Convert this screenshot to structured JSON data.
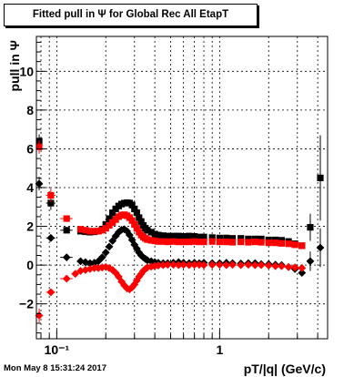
{
  "title": "Fitted pull in  Ψ  for Global Rec All EtapT",
  "footer_timestamp": "Mon May  8 15:31:24 2017",
  "chart_data": {
    "type": "scatter",
    "title": "Fitted pull in  Ψ  for Global Rec All EtapT",
    "xlabel": "pT/|q| (GeV/c)",
    "ylabel": "pull in  Ψ",
    "x_scale": "log",
    "xlim": [
      0.075,
      4.6
    ],
    "ylim": [
      -3.8,
      11.8
    ],
    "x_ticks": [
      {
        "value": 0.1,
        "label": "10⁻¹"
      },
      {
        "value": 1,
        "label": "1"
      }
    ],
    "y_ticks": [
      -2,
      0,
      2,
      4,
      6,
      8,
      10
    ],
    "grid": true,
    "colors": {
      "black_series": "#000000",
      "red_series": "#ff0000"
    },
    "series": [
      {
        "marker": "square",
        "color": "#000000",
        "points": [
          {
            "x": 0.078,
            "y": 6.4,
            "err": 0.35,
            "xerr": [
              0.0035,
              0.0035
            ]
          },
          {
            "x": 0.092,
            "y": 3.2,
            "err": 0.35,
            "xerr": [
              0.006,
              0.006
            ]
          },
          {
            "x": 0.115,
            "y": 1.8,
            "err": 0.15,
            "xerr": [
              0.01,
              0.01
            ]
          },
          {
            "x": 0.14,
            "y": 1.75
          },
          {
            "x": 0.15,
            "y": 1.72
          },
          {
            "x": 0.16,
            "y": 1.7
          },
          {
            "x": 0.17,
            "y": 1.72
          },
          {
            "x": 0.18,
            "y": 1.75
          },
          {
            "x": 0.19,
            "y": 1.85
          },
          {
            "x": 0.2,
            "y": 2.1
          },
          {
            "x": 0.21,
            "y": 2.4
          },
          {
            "x": 0.22,
            "y": 2.7
          },
          {
            "x": 0.23,
            "y": 2.9
          },
          {
            "x": 0.24,
            "y": 3.05
          },
          {
            "x": 0.25,
            "y": 3.15
          },
          {
            "x": 0.26,
            "y": 3.2
          },
          {
            "x": 0.27,
            "y": 3.22
          },
          {
            "x": 0.28,
            "y": 3.2
          },
          {
            "x": 0.29,
            "y": 3.1
          },
          {
            "x": 0.3,
            "y": 2.9
          },
          {
            "x": 0.31,
            "y": 2.7
          },
          {
            "x": 0.32,
            "y": 2.45
          },
          {
            "x": 0.33,
            "y": 2.25
          },
          {
            "x": 0.34,
            "y": 2.05
          },
          {
            "x": 0.35,
            "y": 1.9
          },
          {
            "x": 0.36,
            "y": 1.8
          },
          {
            "x": 0.38,
            "y": 1.7
          },
          {
            "x": 0.4,
            "y": 1.6
          },
          {
            "x": 0.42,
            "y": 1.55
          },
          {
            "x": 0.45,
            "y": 1.52
          },
          {
            "x": 0.48,
            "y": 1.5
          },
          {
            "x": 0.52,
            "y": 1.5
          },
          {
            "x": 0.56,
            "y": 1.5
          },
          {
            "x": 0.6,
            "y": 1.48
          },
          {
            "x": 0.65,
            "y": 1.5
          },
          {
            "x": 0.7,
            "y": 1.48
          },
          {
            "x": 0.75,
            "y": 1.45
          },
          {
            "x": 0.8,
            "y": 1.45
          },
          {
            "x": 0.9,
            "y": 1.42
          },
          {
            "x": 1.0,
            "y": 1.4
          },
          {
            "x": 1.1,
            "y": 1.4
          },
          {
            "x": 1.2,
            "y": 1.38
          },
          {
            "x": 1.35,
            "y": 1.38
          },
          {
            "x": 1.5,
            "y": 1.35
          },
          {
            "x": 1.65,
            "y": 1.35
          },
          {
            "x": 1.8,
            "y": 1.35
          },
          {
            "x": 2.0,
            "y": 1.3
          },
          {
            "x": 2.2,
            "y": 1.3
          },
          {
            "x": 2.4,
            "y": 1.28
          },
          {
            "x": 2.65,
            "y": 1.22
          },
          {
            "x": 2.9,
            "y": 1.1
          },
          {
            "x": 3.2,
            "y": 1.0
          },
          {
            "x": 3.6,
            "y": 1.95,
            "err": 0.7,
            "xerr": [
              0.15,
              0.15
            ]
          },
          {
            "x": 4.15,
            "y": 4.5,
            "err": 2.2,
            "xerr": [
              0.15,
              0.15
            ]
          }
        ]
      },
      {
        "marker": "square",
        "color": "#ff0000",
        "points": [
          {
            "x": 0.078,
            "y": 6.1,
            "err": 0.35,
            "xerr": [
              0.0035,
              0.0035
            ]
          },
          {
            "x": 0.092,
            "y": 3.6,
            "err": 0.35,
            "xerr": [
              0.006,
              0.006
            ]
          },
          {
            "x": 0.115,
            "y": 2.4,
            "err": 0.15,
            "xerr": [
              0.01,
              0.01
            ]
          },
          {
            "x": 0.14,
            "y": 1.85
          },
          {
            "x": 0.15,
            "y": 1.8
          },
          {
            "x": 0.16,
            "y": 1.75
          },
          {
            "x": 0.17,
            "y": 1.75
          },
          {
            "x": 0.18,
            "y": 1.75
          },
          {
            "x": 0.19,
            "y": 1.8
          },
          {
            "x": 0.2,
            "y": 1.9
          },
          {
            "x": 0.21,
            "y": 2.05
          },
          {
            "x": 0.22,
            "y": 2.2
          },
          {
            "x": 0.23,
            "y": 2.35
          },
          {
            "x": 0.24,
            "y": 2.5
          },
          {
            "x": 0.25,
            "y": 2.58
          },
          {
            "x": 0.26,
            "y": 2.6
          },
          {
            "x": 0.27,
            "y": 2.55
          },
          {
            "x": 0.28,
            "y": 2.45
          },
          {
            "x": 0.29,
            "y": 2.3
          },
          {
            "x": 0.3,
            "y": 2.1
          },
          {
            "x": 0.31,
            "y": 1.9
          },
          {
            "x": 0.32,
            "y": 1.7
          },
          {
            "x": 0.33,
            "y": 1.55
          },
          {
            "x": 0.34,
            "y": 1.45
          },
          {
            "x": 0.35,
            "y": 1.38
          },
          {
            "x": 0.36,
            "y": 1.32
          },
          {
            "x": 0.38,
            "y": 1.28
          },
          {
            "x": 0.4,
            "y": 1.25
          },
          {
            "x": 0.42,
            "y": 1.22
          },
          {
            "x": 0.45,
            "y": 1.22
          },
          {
            "x": 0.48,
            "y": 1.2
          },
          {
            "x": 0.52,
            "y": 1.22
          },
          {
            "x": 0.56,
            "y": 1.2
          },
          {
            "x": 0.6,
            "y": 1.2
          },
          {
            "x": 0.65,
            "y": 1.2
          },
          {
            "x": 0.7,
            "y": 1.22
          },
          {
            "x": 0.75,
            "y": 1.2
          },
          {
            "x": 0.8,
            "y": 1.2
          },
          {
            "x": 0.9,
            "y": 1.22
          },
          {
            "x": 1.0,
            "y": 1.2
          },
          {
            "x": 1.1,
            "y": 1.2
          },
          {
            "x": 1.2,
            "y": 1.18
          },
          {
            "x": 1.35,
            "y": 1.2
          },
          {
            "x": 1.5,
            "y": 1.18
          },
          {
            "x": 1.65,
            "y": 1.2
          },
          {
            "x": 1.8,
            "y": 1.18
          },
          {
            "x": 2.0,
            "y": 1.15
          },
          {
            "x": 2.2,
            "y": 1.15
          },
          {
            "x": 2.4,
            "y": 1.12
          },
          {
            "x": 2.65,
            "y": 1.1
          },
          {
            "x": 2.9,
            "y": 1.05
          },
          {
            "x": 3.2,
            "y": 1.0
          }
        ]
      },
      {
        "marker": "diamond",
        "color": "#000000",
        "points": [
          {
            "x": 0.078,
            "y": 4.2,
            "err": 0.35,
            "xerr": [
              0.0035,
              0.0035
            ]
          },
          {
            "x": 0.092,
            "y": 1.4,
            "err": 0.15,
            "xerr": [
              0.006,
              0.006
            ]
          },
          {
            "x": 0.115,
            "y": 0.4,
            "err": 0.1,
            "xerr": [
              0.01,
              0.01
            ]
          },
          {
            "x": 0.14,
            "y": 0.2
          },
          {
            "x": 0.15,
            "y": 0.15
          },
          {
            "x": 0.16,
            "y": 0.1
          },
          {
            "x": 0.17,
            "y": 0.12
          },
          {
            "x": 0.18,
            "y": 0.2
          },
          {
            "x": 0.19,
            "y": 0.4
          },
          {
            "x": 0.2,
            "y": 0.65
          },
          {
            "x": 0.21,
            "y": 0.95
          },
          {
            "x": 0.22,
            "y": 1.25
          },
          {
            "x": 0.23,
            "y": 1.5
          },
          {
            "x": 0.24,
            "y": 1.7
          },
          {
            "x": 0.25,
            "y": 1.82
          },
          {
            "x": 0.26,
            "y": 1.85
          },
          {
            "x": 0.27,
            "y": 1.75
          },
          {
            "x": 0.28,
            "y": 1.55
          },
          {
            "x": 0.29,
            "y": 1.3
          },
          {
            "x": 0.3,
            "y": 1.05
          },
          {
            "x": 0.31,
            "y": 0.85
          },
          {
            "x": 0.32,
            "y": 0.65
          },
          {
            "x": 0.33,
            "y": 0.5
          },
          {
            "x": 0.34,
            "y": 0.4
          },
          {
            "x": 0.35,
            "y": 0.32
          },
          {
            "x": 0.36,
            "y": 0.25
          },
          {
            "x": 0.38,
            "y": 0.2
          },
          {
            "x": 0.4,
            "y": 0.15
          },
          {
            "x": 0.42,
            "y": 0.12
          },
          {
            "x": 0.45,
            "y": 0.1
          },
          {
            "x": 0.48,
            "y": 0.1
          },
          {
            "x": 0.52,
            "y": 0.12
          },
          {
            "x": 0.56,
            "y": 0.15
          },
          {
            "x": 0.6,
            "y": 0.12
          },
          {
            "x": 0.65,
            "y": 0.1
          },
          {
            "x": 0.7,
            "y": 0.12
          },
          {
            "x": 0.75,
            "y": 0.1
          },
          {
            "x": 0.8,
            "y": 0.12
          },
          {
            "x": 0.9,
            "y": 0.1
          },
          {
            "x": 1.0,
            "y": 0.1
          },
          {
            "x": 1.1,
            "y": 0.12
          },
          {
            "x": 1.2,
            "y": 0.1
          },
          {
            "x": 1.35,
            "y": 0.08
          },
          {
            "x": 1.5,
            "y": 0.1
          },
          {
            "x": 1.65,
            "y": 0.1
          },
          {
            "x": 1.8,
            "y": 0.05
          },
          {
            "x": 2.0,
            "y": 0.05
          },
          {
            "x": 2.2,
            "y": 0.02
          },
          {
            "x": 2.4,
            "y": 0.0
          },
          {
            "x": 2.65,
            "y": -0.1
          },
          {
            "x": 2.9,
            "y": -0.2
          },
          {
            "x": 3.2,
            "y": -0.4
          },
          {
            "x": 3.6,
            "y": 0.2,
            "err": 0.5,
            "xerr": [
              0.15,
              0.15
            ]
          },
          {
            "x": 4.15,
            "y": 0.9,
            "err": 1.0,
            "xerr": [
              0.15,
              0.15
            ]
          }
        ]
      },
      {
        "marker": "diamond",
        "color": "#ff0000",
        "points": [
          {
            "x": 0.078,
            "y": -2.6,
            "err": 0.35,
            "xerr": [
              0.0035,
              0.0035
            ]
          },
          {
            "x": 0.092,
            "y": -1.4,
            "err": 0.15,
            "xerr": [
              0.006,
              0.006
            ]
          },
          {
            "x": 0.115,
            "y": -0.7,
            "err": 0.1,
            "xerr": [
              0.01,
              0.01
            ]
          },
          {
            "x": 0.13,
            "y": -0.45
          },
          {
            "x": 0.14,
            "y": -0.3
          },
          {
            "x": 0.15,
            "y": -0.25
          },
          {
            "x": 0.16,
            "y": -0.2
          },
          {
            "x": 0.17,
            "y": -0.15
          },
          {
            "x": 0.18,
            "y": -0.15
          },
          {
            "x": 0.19,
            "y": -0.12
          },
          {
            "x": 0.2,
            "y": -0.1
          },
          {
            "x": 0.21,
            "y": -0.15
          },
          {
            "x": 0.22,
            "y": -0.25
          },
          {
            "x": 0.23,
            "y": -0.4
          },
          {
            "x": 0.24,
            "y": -0.6
          },
          {
            "x": 0.25,
            "y": -0.85
          },
          {
            "x": 0.26,
            "y": -1.05
          },
          {
            "x": 0.27,
            "y": -1.2
          },
          {
            "x": 0.28,
            "y": -1.25
          },
          {
            "x": 0.29,
            "y": -1.15
          },
          {
            "x": 0.3,
            "y": -1.0
          },
          {
            "x": 0.31,
            "y": -0.8
          },
          {
            "x": 0.32,
            "y": -0.6
          },
          {
            "x": 0.33,
            "y": -0.45
          },
          {
            "x": 0.34,
            "y": -0.3
          },
          {
            "x": 0.35,
            "y": -0.2
          },
          {
            "x": 0.36,
            "y": -0.12
          },
          {
            "x": 0.38,
            "y": -0.08
          },
          {
            "x": 0.4,
            "y": -0.05
          },
          {
            "x": 0.42,
            "y": -0.02
          },
          {
            "x": 0.45,
            "y": 0.0
          },
          {
            "x": 0.48,
            "y": 0.02
          },
          {
            "x": 0.52,
            "y": 0.02
          },
          {
            "x": 0.56,
            "y": 0.0
          },
          {
            "x": 0.6,
            "y": 0.02
          },
          {
            "x": 0.65,
            "y": 0.0
          },
          {
            "x": 0.7,
            "y": 0.02
          },
          {
            "x": 0.75,
            "y": 0.02
          },
          {
            "x": 0.8,
            "y": 0.0
          },
          {
            "x": 0.9,
            "y": 0.02
          },
          {
            "x": 1.0,
            "y": 0.02
          },
          {
            "x": 1.1,
            "y": 0.0
          },
          {
            "x": 1.2,
            "y": 0.02
          },
          {
            "x": 1.35,
            "y": 0.0
          },
          {
            "x": 1.5,
            "y": 0.02
          },
          {
            "x": 1.65,
            "y": 0.0
          },
          {
            "x": 1.8,
            "y": 0.0
          },
          {
            "x": 2.0,
            "y": -0.02
          },
          {
            "x": 2.2,
            "y": -0.05
          },
          {
            "x": 2.4,
            "y": -0.05
          },
          {
            "x": 2.65,
            "y": -0.1
          },
          {
            "x": 2.9,
            "y": -0.12
          },
          {
            "x": 3.2,
            "y": -0.15
          }
        ]
      }
    ]
  }
}
